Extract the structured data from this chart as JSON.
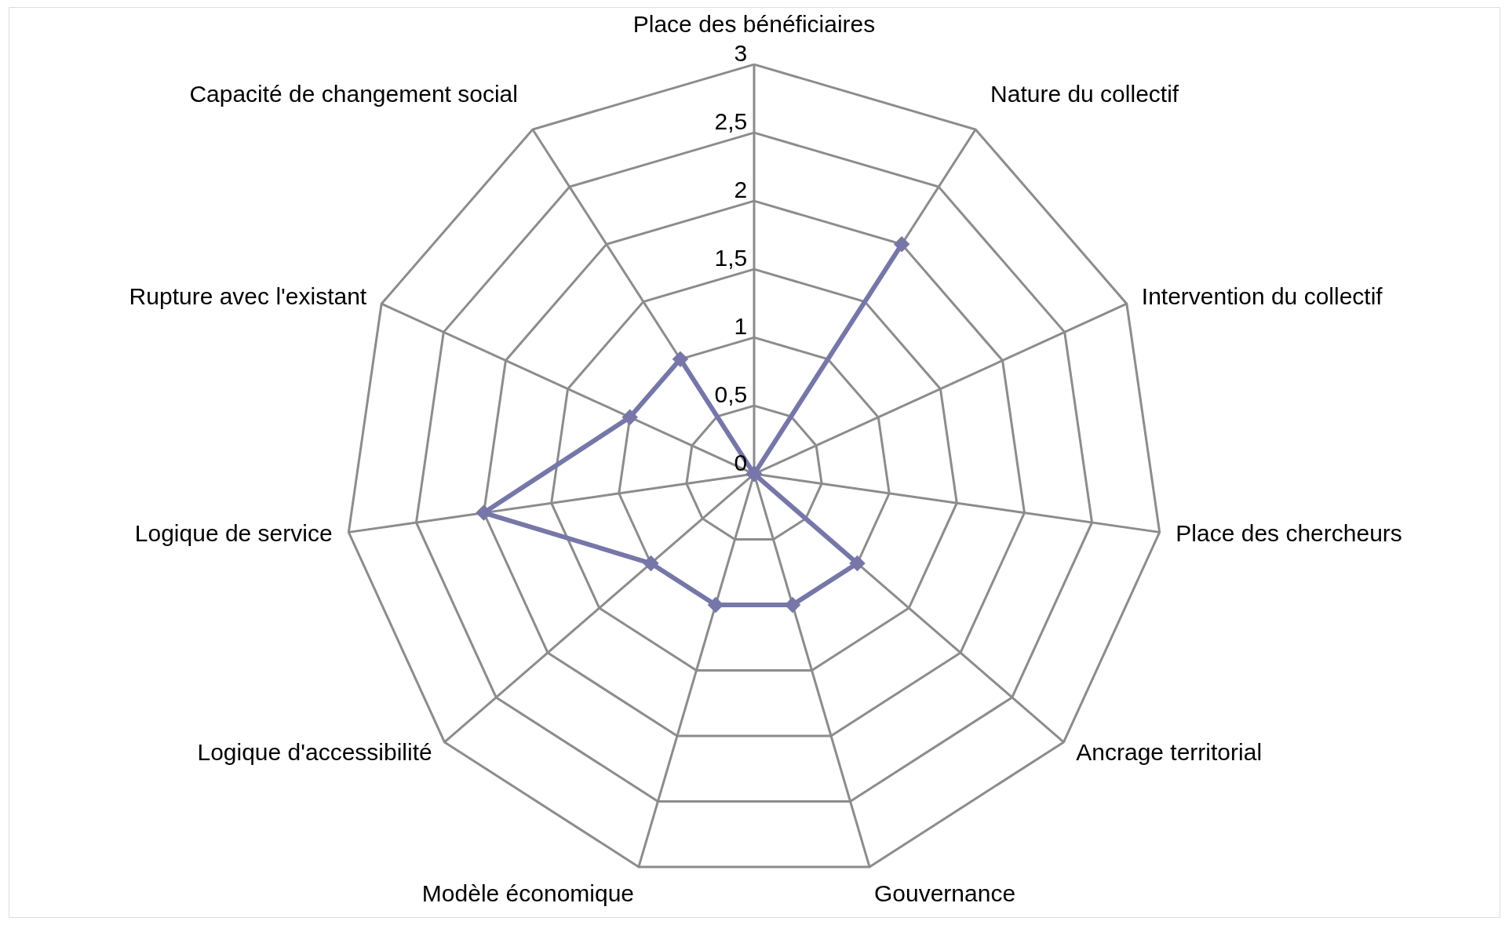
{
  "chart_data": {
    "type": "radar",
    "categories": [
      "Place des bénéficiaires",
      "Nature du collectif",
      "Intervention du collectif",
      "Place des chercheurs",
      "Ancrage territorial",
      "Gouvernance",
      "Modèle économique",
      "Logique d'accessibilité",
      "Logique de service",
      "Rupture avec l'existant",
      "Capacité de changement social"
    ],
    "series": [
      {
        "color": "#7677a8",
        "values": [
          0,
          2,
          0,
          0,
          1,
          1,
          1,
          1,
          2,
          1,
          1
        ]
      }
    ],
    "ylim": [
      0,
      3
    ],
    "yticks": [
      0,
      {
        "value": 0.5,
        "label": "0,5"
      },
      1,
      {
        "value": 1.5,
        "label": "1,5"
      },
      2,
      {
        "value": 2.5,
        "label": "2,5"
      },
      3
    ],
    "grid": true,
    "marker": "diamond",
    "line_style": "solid"
  }
}
